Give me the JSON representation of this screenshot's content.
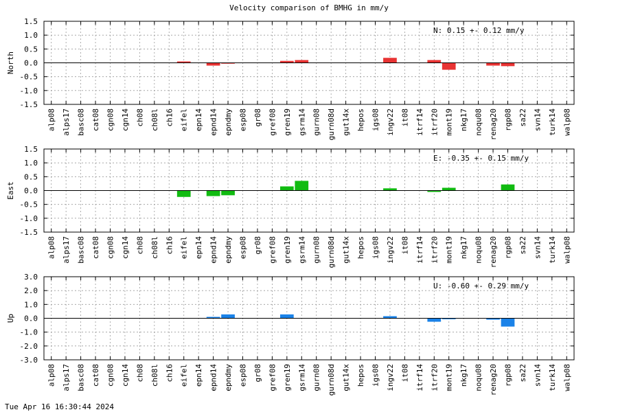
{
  "title": "Velocity comparison of BMHG in mm/y",
  "footer": "Tue Apr 16 16:30:44 2024",
  "chart_data": [
    {
      "type": "bar",
      "ylabel": "North",
      "ylim": [
        -1.5,
        1.5
      ],
      "yticks": [
        "1.5",
        "1.0",
        "0.5",
        "0.0",
        "-0.5",
        "-1.0",
        "-1.5"
      ],
      "grid": true,
      "color": "#e83333",
      "annotation": "N:   0.15 +-  0.12 mm/y",
      "categories": [
        "alp08",
        "alps17",
        "basc08",
        "cat08",
        "cgn08",
        "cgn14",
        "ch08",
        "ch08l",
        "ch16",
        "eifel",
        "epn14",
        "epnd14",
        "epndmy",
        "esp08",
        "gr08",
        "gref08",
        "gren19",
        "gsrm14",
        "gurn08",
        "gurn08d",
        "gut14x",
        "hepos",
        "igs08",
        "ingv22",
        "it08",
        "itrf14",
        "itrf20",
        "mont19",
        "nkg17",
        "noqu08",
        "renag20",
        "rgp08",
        "sa22",
        "svn14",
        "turk14",
        "walp08"
      ],
      "values": [
        null,
        null,
        null,
        null,
        null,
        null,
        null,
        null,
        null,
        0.05,
        null,
        -0.1,
        -0.03,
        null,
        null,
        null,
        0.07,
        0.1,
        null,
        null,
        null,
        null,
        null,
        0.18,
        null,
        null,
        0.1,
        -0.25,
        null,
        null,
        -0.1,
        -0.12,
        null,
        null,
        null,
        null
      ]
    },
    {
      "type": "bar",
      "ylabel": "East",
      "ylim": [
        -1.5,
        1.5
      ],
      "yticks": [
        "1.5",
        "1.0",
        "0.5",
        "0.0",
        "-0.5",
        "-1.0",
        "-1.5"
      ],
      "grid": true,
      "color": "#11bb11",
      "annotation": "E:  -0.35 +-  0.15 mm/y",
      "categories": [
        "alp08",
        "alps17",
        "basc08",
        "cat08",
        "cgn08",
        "cgn14",
        "ch08",
        "ch08l",
        "ch16",
        "eifel",
        "epn14",
        "epnd14",
        "epndmy",
        "esp08",
        "gr08",
        "gref08",
        "gren19",
        "gsrm14",
        "gurn08",
        "gurn08d",
        "gut14x",
        "hepos",
        "igs08",
        "ingv22",
        "it08",
        "itrf14",
        "itrf20",
        "mont19",
        "nkg17",
        "noqu08",
        "renag20",
        "rgp08",
        "sa22",
        "svn14",
        "turk14",
        "walp08"
      ],
      "values": [
        null,
        null,
        null,
        null,
        null,
        null,
        null,
        null,
        null,
        -0.23,
        null,
        -0.2,
        -0.17,
        null,
        null,
        null,
        0.15,
        0.35,
        null,
        null,
        null,
        null,
        null,
        0.08,
        null,
        null,
        -0.05,
        0.1,
        null,
        null,
        null,
        0.22,
        null,
        null,
        null,
        null
      ]
    },
    {
      "type": "bar",
      "ylabel": "Up",
      "ylim": [
        -3.0,
        3.0
      ],
      "yticks": [
        "3.0",
        "2.0",
        "1.0",
        "0.0",
        "-1.0",
        "-2.0",
        "-3.0"
      ],
      "grid": true,
      "color": "#1a82e8",
      "annotation": "U:  -0.60 +-  0.29 mm/y",
      "categories": [
        "alp08",
        "alps17",
        "basc08",
        "cat08",
        "cgn08",
        "cgn14",
        "ch08",
        "ch08l",
        "ch16",
        "eifel",
        "epn14",
        "epnd14",
        "epndmy",
        "esp08",
        "gr08",
        "gref08",
        "gren19",
        "gsrm14",
        "gurn08",
        "gurn08d",
        "gut14x",
        "hepos",
        "igs08",
        "ingv22",
        "it08",
        "itrf14",
        "itrf20",
        "mont19",
        "nkg17",
        "noqu08",
        "renag20",
        "rgp08",
        "sa22",
        "svn14",
        "turk14",
        "walp08"
      ],
      "values": [
        null,
        null,
        null,
        null,
        null,
        null,
        null,
        null,
        null,
        null,
        null,
        0.1,
        0.28,
        null,
        null,
        null,
        0.28,
        null,
        null,
        null,
        null,
        null,
        null,
        0.15,
        null,
        null,
        -0.25,
        -0.07,
        null,
        null,
        -0.1,
        -0.6,
        null,
        null,
        null,
        null
      ]
    }
  ]
}
